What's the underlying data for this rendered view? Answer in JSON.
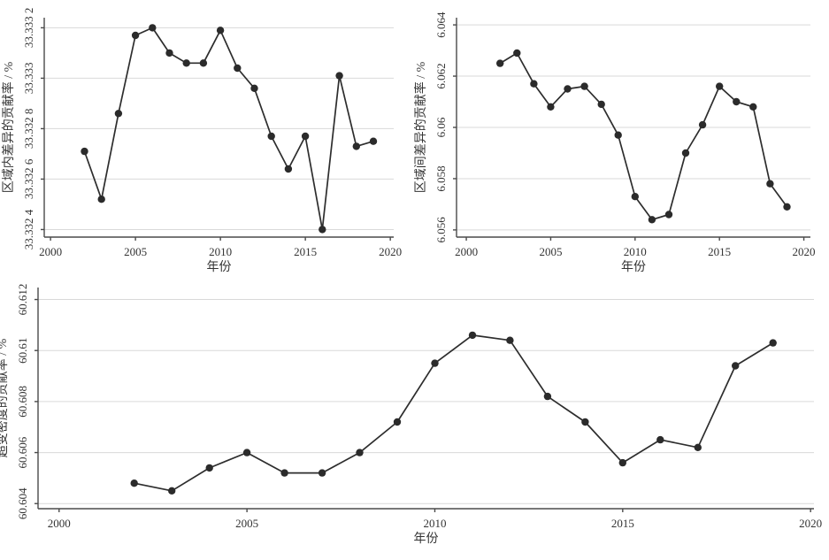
{
  "figure": {
    "description": "三幅折线图：差异贡献率分解（2002-2019）",
    "background": "#ffffff",
    "line_color": "#2d2d2d",
    "marker_color": "#2b2b2b",
    "grid_color": "#d9d9d9",
    "axis_color": "#4a4a4a",
    "tick_label_color": "#333333"
  },
  "chart_data": [
    {
      "id": "within-region",
      "type": "line",
      "title": "",
      "xlabel": "年份",
      "ylabel": "区域内差异的贡献率 / %",
      "x": [
        2002,
        2003,
        2004,
        2005,
        2006,
        2007,
        2008,
        2009,
        2010,
        2011,
        2012,
        2013,
        2014,
        2015,
        2016,
        2017,
        2018,
        2019
      ],
      "values": [
        33.33271,
        33.33252,
        33.33286,
        33.33317,
        33.3332,
        33.3331,
        33.33306,
        33.33306,
        33.33319,
        33.33304,
        33.33296,
        33.33277,
        33.33264,
        33.33277,
        33.3324,
        33.33301,
        33.33273,
        33.33275
      ],
      "xticks": [
        2000,
        2005,
        2010,
        2015,
        2020
      ],
      "xtick_labels": [
        "2000",
        "2005",
        "2010",
        "2015",
        "2020"
      ],
      "yticks": [
        33.3324,
        33.3326,
        33.3328,
        33.333,
        33.3332
      ],
      "ytick_labels": [
        "33.332 4",
        "33.332 6",
        "33.332 8",
        "33.333",
        "33.333 2"
      ],
      "xlim": [
        1999.63,
        2020.2
      ],
      "ylim": [
        33.33237,
        33.33324
      ],
      "grid": "horizontal",
      "legend": null
    },
    {
      "id": "between-region",
      "type": "line",
      "title": "",
      "xlabel": "年份",
      "ylabel": "区域间差异的贡献率 / %",
      "x": [
        2002,
        2003,
        2004,
        2005,
        2006,
        2007,
        2008,
        2009,
        2010,
        2011,
        2012,
        2013,
        2014,
        2015,
        2016,
        2017,
        2018,
        2019
      ],
      "values": [
        6.0625,
        6.0629,
        6.0617,
        6.0608,
        6.0615,
        6.0616,
        6.0609,
        6.0597,
        6.0573,
        6.0564,
        6.0566,
        6.059,
        6.0601,
        6.0616,
        6.061,
        6.0608,
        6.0578,
        6.0569
      ],
      "xticks": [
        2000,
        2005,
        2010,
        2015,
        2020
      ],
      "xtick_labels": [
        "2000",
        "2005",
        "2010",
        "2015",
        "2020"
      ],
      "yticks": [
        6.056,
        6.058,
        6.06,
        6.062,
        6.064
      ],
      "ytick_labels": [
        "6.056",
        "6.058",
        "6.06",
        "6.062",
        "6.064"
      ],
      "xlim": [
        1999.42,
        2020.39
      ],
      "ylim": [
        6.05572,
        6.06428
      ],
      "grid": "horizontal",
      "legend": null
    },
    {
      "id": "hypervariable-density",
      "type": "line",
      "title": "",
      "xlabel": "年份",
      "ylabel": "超变密度的贡献率 / %",
      "x": [
        2002,
        2003,
        2004,
        2005,
        2006,
        2007,
        2008,
        2009,
        2010,
        2011,
        2012,
        2013,
        2014,
        2015,
        2016,
        2017,
        2018,
        2019
      ],
      "values": [
        60.6048,
        60.6045,
        60.6054,
        60.606,
        60.6052,
        60.6052,
        60.606,
        60.6072,
        60.6095,
        60.6106,
        60.6104,
        60.6082,
        60.6072,
        60.6056,
        60.6065,
        60.6062,
        60.6094,
        60.6103
      ],
      "xticks": [
        2000,
        2005,
        2010,
        2015,
        2020
      ],
      "xtick_labels": [
        "2000",
        "2005",
        "2010",
        "2015",
        "2020"
      ],
      "yticks": [
        60.604,
        60.606,
        60.608,
        60.61,
        60.612
      ],
      "ytick_labels": [
        "60.604",
        "60.606",
        "60.608",
        "60.61",
        "60.612"
      ],
      "xlim": [
        1999.44,
        2020.09
      ],
      "ylim": [
        60.6038,
        60.61247
      ],
      "grid": "horizontal",
      "legend": null
    }
  ]
}
